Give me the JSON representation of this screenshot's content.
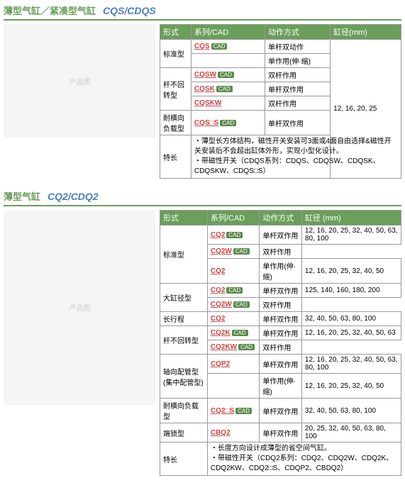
{
  "s1": {
    "titleCn": "薄型气缸／紧凑型气缸",
    "titleEn": "CQS/CDQS",
    "headers": [
      "形式",
      "系列/CAD",
      "动作方式",
      "缸径(mm)"
    ],
    "rows": [
      {
        "form": "标准型",
        "series": "CQS",
        "cad": true,
        "action": "单杆双动作",
        "bore": "12, 16, 20, 25",
        "fspan": 2,
        "bspan": 7
      },
      {
        "series": "",
        "action": "单作用(伸·缩)"
      },
      {
        "form": "杆不回转型",
        "series": "CQSW",
        "cad": true,
        "action": "双杆作用",
        "fspan": 3
      },
      {
        "series": "CQSK",
        "cad": true,
        "action": "单杆双作用"
      },
      {
        "series": "CQSKW",
        "action": "双杆作用"
      },
      {
        "form": "耐横向负载型",
        "series": "CQS□S",
        "cad": true,
        "action": "单杆双作用"
      }
    ],
    "featLabel": "特长",
    "feat": "・薄型长方体结构，磁性开关安装可3面或4面自由选择&磁性开关安装后不会超出缸体外形，实现小型化设计。\n・带磁性开关（CDQS系列：CDQS、CDQSW、CDQSK、CDQSKW、CDQS□S）"
  },
  "s2": {
    "titleCn": "薄型气缸",
    "titleEn": "CQ2/CDQ2",
    "headers": [
      "形式",
      "系列/CAD",
      "动作方式",
      "缸径 (mm)"
    ],
    "rows": [
      {
        "form": "标准型",
        "series": "CQ2",
        "cad": true,
        "action": "单杆双作用",
        "bore": "12, 16, 20, 25, 32, 40, 50, 63, 80, 100",
        "fspan": 3
      },
      {
        "series": "CQ2W",
        "cad": true,
        "action": "双杆作用"
      },
      {
        "series": "CQ2",
        "action": "单作用(伸·缩)",
        "bore": "12, 16, 20, 25, 32, 40, 50"
      },
      {
        "form": "大缸径型",
        "series": "CQ2",
        "cad": true,
        "action": "单杆双作用",
        "bore": "125, 140, 160, 180, 200",
        "fspan": 2
      },
      {
        "series": "CQ2W",
        "cad": true,
        "action": "双杆作用"
      },
      {
        "form": "长行程",
        "series": "CQ2",
        "action": "单杆双作用",
        "bore": "32, 40, 50, 63, 80, 100"
      },
      {
        "form": "杆不回转型",
        "series": "CQ2K",
        "cad": true,
        "action": "单杆双作用",
        "bore": "12, 16, 20, 25, 32, 40, 50, 63",
        "fspan": 2
      },
      {
        "series": "CQ2KW",
        "cad": true,
        "action": "双杆作用"
      },
      {
        "form": "轴向配管型(集中配管型)",
        "series": "CQP2",
        "action": "单杆双作用",
        "bore": "12, 16, 20, 25, 32, 40, 50, 63, 80, 100",
        "fspan": 2
      },
      {
        "series": "",
        "action": "单作用(伸·缩)",
        "bore": "12, 16, 20, 25, 32, 40, 50"
      },
      {
        "form": "耐横向负载型",
        "series": "CQ2□S",
        "cad": true,
        "action": "单杆双作用",
        "bore": "32, 40, 50, 63, 80, 100"
      },
      {
        "form": "端锁型",
        "series": "CBQ2",
        "action": "单杆双作用",
        "bore": "20, 25, 32, 40, 50, 63, 80, 100"
      }
    ],
    "featLabel": "特长",
    "feat": "・长度方向设计成薄型的省空间气缸。\n・带磁性开关（CDQ2系列：CDQ2、CDQ2W、CDQ2K、CDQ2KW、CDQ2□S、CDQP2、CBDQ2）"
  }
}
